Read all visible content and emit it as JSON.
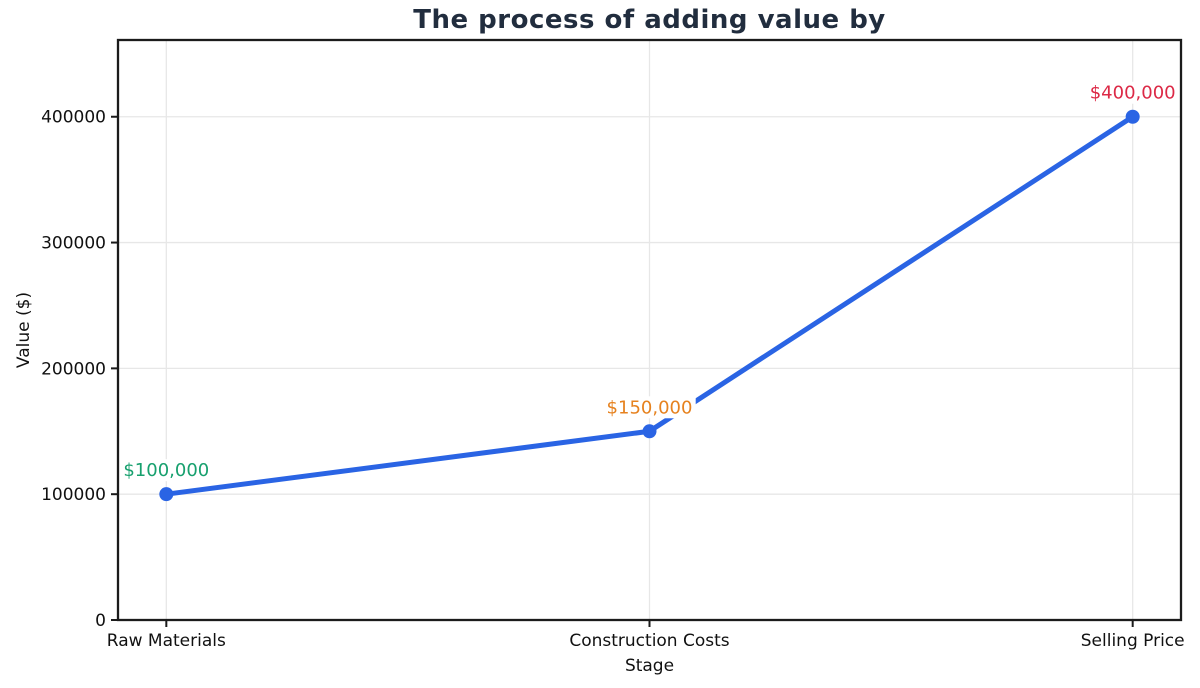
{
  "chart_data": {
    "type": "line",
    "title": "The process of adding value by",
    "xlabel": "Stage",
    "ylabel": "Value ($)",
    "categories": [
      "Raw Materials",
      "Construction Costs",
      "Selling Price"
    ],
    "series": [
      {
        "name": "Value",
        "values": [
          100000,
          150000,
          400000
        ]
      }
    ],
    "annotations": [
      {
        "label": "$100,000",
        "color": "#17a06e"
      },
      {
        "label": "$150,000",
        "color": "#e6821f"
      },
      {
        "label": "$400,000",
        "color": "#dc2946"
      }
    ],
    "yticks": [
      0,
      100000,
      200000,
      300000,
      400000
    ],
    "ytick_labels": [
      "0",
      "100000",
      "200000",
      "300000",
      "400000"
    ],
    "xlim": [
      -0.1,
      2.1
    ],
    "ylim": [
      0,
      461000
    ],
    "grid": true,
    "legend": "none",
    "colors": {
      "line": "#2a64e4",
      "marker": "#2a64e4",
      "grid": "#e7e7e7",
      "spine": "#1b1b1b",
      "tick_label": "#111111",
      "title": "#212d3e",
      "background": "#ffffff"
    }
  }
}
